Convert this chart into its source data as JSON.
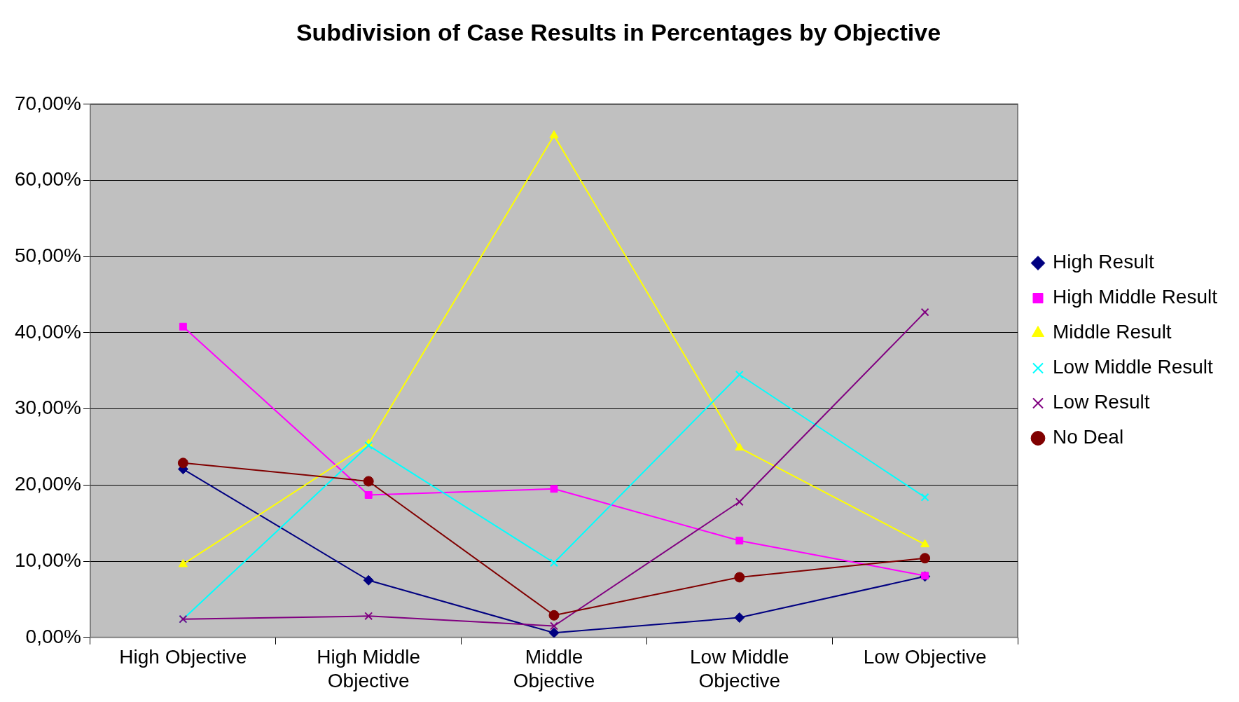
{
  "chart_data": {
    "type": "line",
    "title": "Subdivision of Case Results in Percentages by Objective",
    "categories": [
      "High Objective",
      "High Middle Objective",
      "Middle Objective",
      "Low Middle Objective",
      "Low Objective"
    ],
    "series": [
      {
        "name": "High Result",
        "color": "#000080",
        "marker": "diamond",
        "values": [
          22.1,
          7.5,
          0.6,
          2.6,
          8.0
        ]
      },
      {
        "name": "High Middle Result",
        "color": "#ff00ff",
        "marker": "square",
        "values": [
          40.8,
          18.7,
          19.5,
          12.7,
          8.1
        ]
      },
      {
        "name": "Middle Result",
        "color": "#ffff00",
        "marker": "triangle",
        "values": [
          9.6,
          25.4,
          65.9,
          24.9,
          12.2
        ]
      },
      {
        "name": "Low Middle Result",
        "color": "#00ffff",
        "marker": "cross",
        "values": [
          2.4,
          25.2,
          9.8,
          34.5,
          18.4
        ]
      },
      {
        "name": "Low Result",
        "color": "#800080",
        "marker": "cross",
        "values": [
          2.4,
          2.8,
          1.5,
          17.8,
          42.7
        ]
      },
      {
        "name": "No Deal",
        "color": "#800000",
        "marker": "circle",
        "values": [
          22.9,
          20.5,
          2.9,
          7.9,
          10.4
        ]
      }
    ],
    "ylim": [
      0,
      70
    ],
    "yticks": [
      {
        "value": 0,
        "label": "0,00%"
      },
      {
        "value": 10,
        "label": "10,00%"
      },
      {
        "value": 20,
        "label": "20,00%"
      },
      {
        "value": 30,
        "label": "30,00%"
      },
      {
        "value": 40,
        "label": "40,00%"
      },
      {
        "value": 50,
        "label": "50,00%"
      },
      {
        "value": 60,
        "label": "60,00%"
      },
      {
        "value": 70,
        "label": "70,00%"
      }
    ],
    "grid": "y",
    "legend": "right",
    "line_style": "solid"
  }
}
